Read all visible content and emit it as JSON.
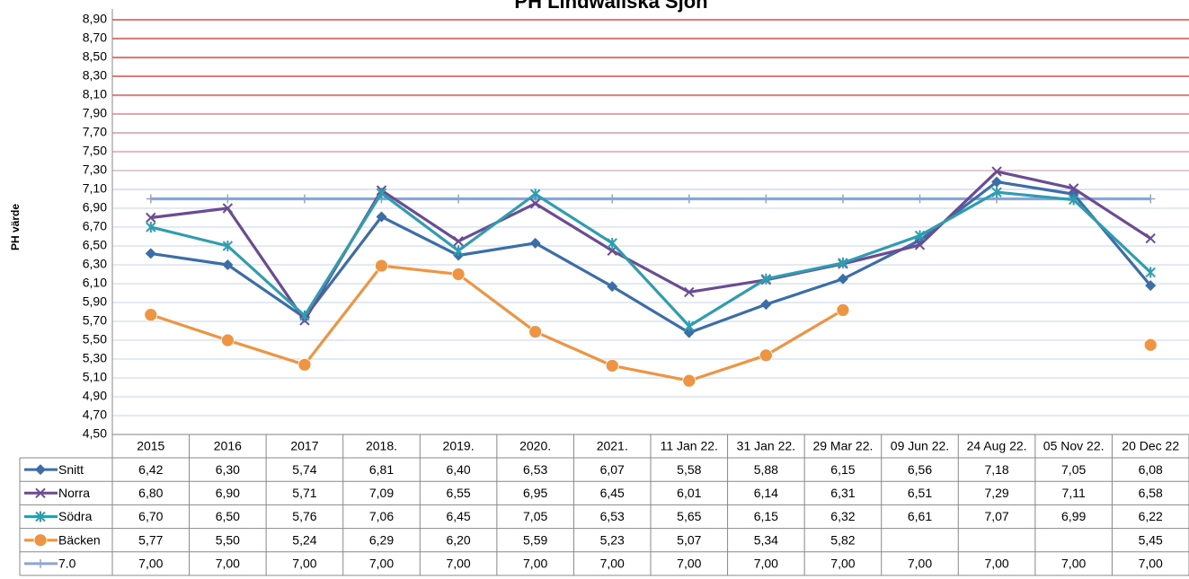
{
  "chart_data": {
    "type": "line",
    "title": "PH  Lindwallska Sjön",
    "y_axis_label": "PH värde",
    "categories": [
      "2015",
      "2016",
      "2017",
      "2018.",
      "2019.",
      "2020.",
      "2021.",
      "11 Jan 22.",
      "31 Jan 22.",
      "29 Mar 22.",
      "09 Jun 22.",
      "24 Aug 22.",
      "05 Nov 22.",
      "20 Dec 22"
    ],
    "series": [
      {
        "name": "Snitt",
        "color": "#3b6ea8",
        "marker": "diamond",
        "values": [
          6.42,
          6.3,
          5.74,
          6.81,
          6.4,
          6.53,
          6.07,
          5.58,
          5.88,
          6.15,
          6.56,
          7.18,
          7.05,
          6.08
        ],
        "value_labels": [
          "6,42",
          "6,30",
          "5,74",
          "6,81",
          "6,40",
          "6,53",
          "6,07",
          "5,58",
          "5,88",
          "6,15",
          "6,56",
          "7,18",
          "7,05",
          "6,08"
        ]
      },
      {
        "name": "Norra",
        "color": "#6b4c94",
        "marker": "x",
        "values": [
          6.8,
          6.9,
          5.71,
          7.09,
          6.55,
          6.95,
          6.45,
          6.01,
          6.14,
          6.31,
          6.51,
          7.29,
          7.11,
          6.58
        ],
        "value_labels": [
          "6,80",
          "6,90",
          "5,71",
          "7,09",
          "6,55",
          "6,95",
          "6,45",
          "6,01",
          "6,14",
          "6,31",
          "6,51",
          "7,29",
          "7,11",
          "6,58"
        ]
      },
      {
        "name": "Södra",
        "color": "#2f9db0",
        "marker": "star",
        "values": [
          6.7,
          6.5,
          5.76,
          7.06,
          6.45,
          7.05,
          6.53,
          5.65,
          6.15,
          6.32,
          6.61,
          7.07,
          6.99,
          6.22
        ],
        "value_labels": [
          "6,70",
          "6,50",
          "5,76",
          "7,06",
          "6,45",
          "7,05",
          "6,53",
          "5,65",
          "6,15",
          "6,32",
          "6,61",
          "7,07",
          "6,99",
          "6,22"
        ]
      },
      {
        "name": "Bäcken",
        "color": "#ef9440",
        "marker": "circle",
        "values": [
          5.77,
          5.5,
          5.24,
          6.29,
          6.2,
          5.59,
          5.23,
          5.07,
          5.34,
          5.82,
          null,
          null,
          null,
          5.45
        ],
        "value_labels": [
          "5,77",
          "5,50",
          "5,24",
          "6,29",
          "6,20",
          "5,59",
          "5,23",
          "5,07",
          "5,34",
          "5,82",
          null,
          null,
          null,
          "5,45"
        ]
      },
      {
        "name": "7.0",
        "color": "#8fa5d1",
        "marker": "plus",
        "values": [
          7.0,
          7.0,
          7.0,
          7.0,
          7.0,
          7.0,
          7.0,
          7.0,
          7.0,
          7.0,
          7.0,
          7.0,
          7.0,
          7.0
        ],
        "value_labels": [
          "7,00",
          "7,00",
          "7,00",
          "7,00",
          "7,00",
          "7,00",
          "7,00",
          "7,00",
          "7,00",
          "7,00",
          "7,00",
          "7,00",
          "7,00",
          "7,00"
        ]
      }
    ],
    "ylim": [
      4.5,
      8.9
    ],
    "yticks": [
      {
        "value": 4.5,
        "label": "4,50"
      },
      {
        "value": 4.7,
        "label": "4,70"
      },
      {
        "value": 4.9,
        "label": "4,90"
      },
      {
        "value": 5.1,
        "label": "5,10"
      },
      {
        "value": 5.3,
        "label": "5,30"
      },
      {
        "value": 5.5,
        "label": "5,50"
      },
      {
        "value": 5.7,
        "label": "5,70"
      },
      {
        "value": 5.9,
        "label": "5,90"
      },
      {
        "value": 6.1,
        "label": "6,10"
      },
      {
        "value": 6.3,
        "label": "6,30"
      },
      {
        "value": 6.5,
        "label": "6,50"
      },
      {
        "value": 6.7,
        "label": "6,70"
      },
      {
        "value": 6.9,
        "label": "6,90"
      },
      {
        "value": 7.1,
        "label": "7,10"
      },
      {
        "value": 7.3,
        "label": "7,30"
      },
      {
        "value": 7.5,
        "label": "7,50"
      },
      {
        "value": 7.7,
        "label": "7,70"
      },
      {
        "value": 7.9,
        "label": "7,90"
      },
      {
        "value": 8.1,
        "label": "8,10"
      },
      {
        "value": 8.3,
        "label": "8,30"
      },
      {
        "value": 8.5,
        "label": "8,50"
      },
      {
        "value": 8.7,
        "label": "8,70"
      },
      {
        "value": 8.9,
        "label": "8,90"
      }
    ],
    "grid": true,
    "grid_colors": [
      "#d3deee",
      "#d3deee",
      "#d3deee",
      "#d3deee",
      "#d3deee",
      "#d3deee",
      "#d3deee",
      "#d3deee",
      "#d3deee",
      "#d3deee",
      "#d3deee",
      "#d3deee",
      "#d3deee",
      "#c9d2ea",
      "#d9a8b8",
      "#e08aa0",
      "#e07a8e",
      "#e06a7a",
      "#e03030",
      "#e02020",
      "#e02020",
      "#e02020",
      "#e02020"
    ]
  }
}
